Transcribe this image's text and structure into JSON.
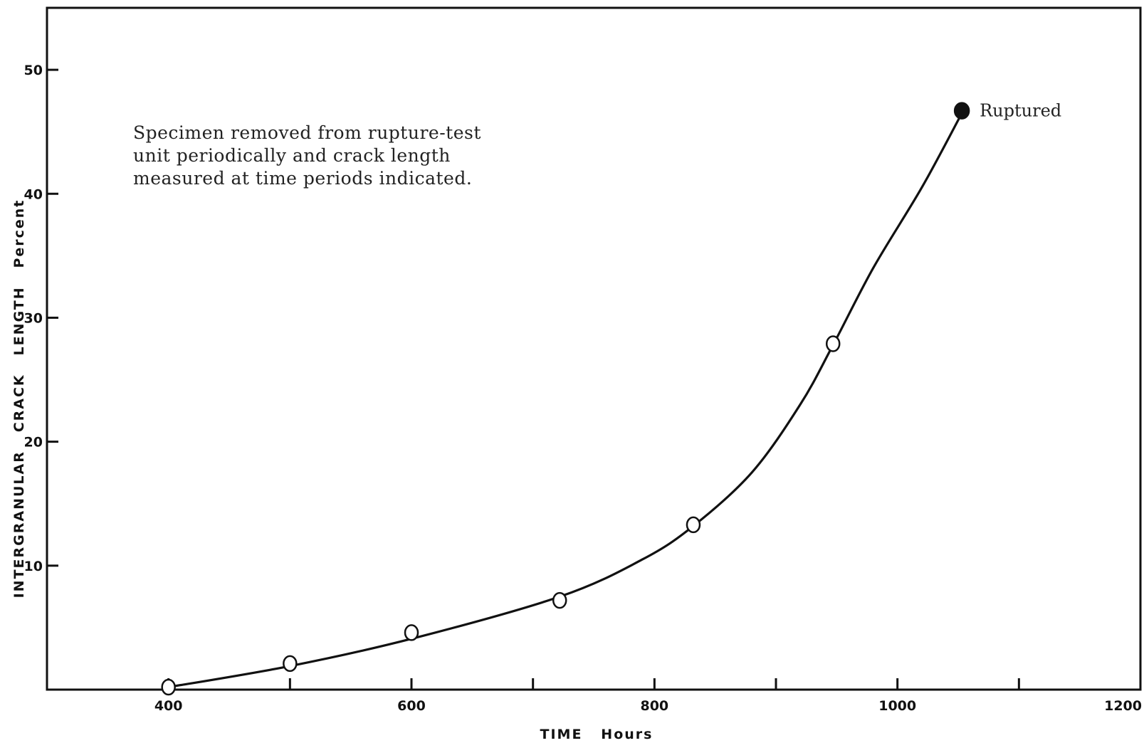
{
  "chart_data": {
    "type": "line",
    "xlabel": "TIME   Hours",
    "ylabel": "INTERGRANULAR   CRACK   LENGTH   Percent",
    "xlim": [
      300,
      1200
    ],
    "ylim": [
      0,
      55
    ],
    "x_ticks_major": [
      400,
      600,
      800,
      1000,
      1200
    ],
    "x_ticks_minor": [
      500,
      700,
      900,
      1100
    ],
    "y_ticks": [
      10,
      20,
      30,
      40,
      50
    ],
    "grid": false,
    "legend": "none",
    "note": [
      "Specimen removed from rupture-test",
      "unit periodically and crack length",
      "measured at time periods indicated."
    ],
    "series": [
      {
        "points": [
          {
            "x": 400,
            "y": 0.2
          },
          {
            "x": 500,
            "y": 2.1
          },
          {
            "x": 600,
            "y": 4.6
          },
          {
            "x": 722,
            "y": 7.2
          },
          {
            "x": 832,
            "y": 13.3
          },
          {
            "x": 947,
            "y": 27.9
          },
          {
            "x": 1053,
            "y": 46.7
          }
        ],
        "marker_fill": [
          "open",
          "open",
          "open",
          "open",
          "open",
          "open",
          "filled"
        ],
        "curve": [
          {
            "x": 400,
            "y": 0.2
          },
          {
            "x": 500,
            "y": 1.9
          },
          {
            "x": 600,
            "y": 4.1
          },
          {
            "x": 722,
            "y": 7.5
          },
          {
            "x": 790,
            "y": 10.5
          },
          {
            "x": 832,
            "y": 13.2
          },
          {
            "x": 880,
            "y": 17.5
          },
          {
            "x": 920,
            "y": 23.0
          },
          {
            "x": 947,
            "y": 27.8
          },
          {
            "x": 980,
            "y": 34.0
          },
          {
            "x": 1020,
            "y": 40.5
          },
          {
            "x": 1053,
            "y": 46.5
          }
        ]
      }
    ],
    "annotations": [
      {
        "text": "Ruptured",
        "x": 1053,
        "y": 46.7
      }
    ],
    "colors": {
      "line": "#111111",
      "background": "#ffffff"
    }
  }
}
